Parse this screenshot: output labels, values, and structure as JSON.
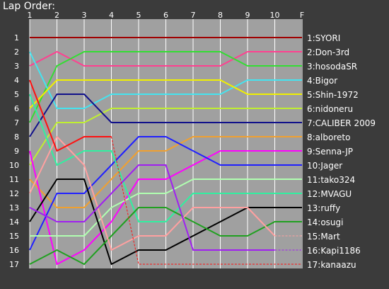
{
  "title": "Lap Order:",
  "chart_data": {
    "type": "line",
    "x_ticks": [
      "1",
      "2",
      "3",
      "4",
      "5",
      "6",
      "7",
      "8",
      "9",
      "10",
      "F"
    ],
    "y_ticks": [
      1,
      2,
      3,
      4,
      5,
      6,
      7,
      8,
      9,
      10,
      11,
      12,
      13,
      14,
      15,
      16,
      17
    ],
    "ylim": [
      1,
      17
    ],
    "legend_placement": "right",
    "series": [
      {
        "name": "1:SYORI",
        "color": "#a00000",
        "positions": [
          1,
          1,
          1,
          1,
          1,
          1,
          1,
          1,
          1,
          1,
          1
        ]
      },
      {
        "name": "2:Don-3rd",
        "color": "#ff4090",
        "positions": [
          3,
          2,
          3,
          3,
          3,
          3,
          3,
          3,
          2,
          2,
          2
        ]
      },
      {
        "name": "3:hosodaSR",
        "color": "#33dd33",
        "positions": [
          7,
          3,
          2,
          2,
          2,
          2,
          2,
          2,
          3,
          3,
          3
        ]
      },
      {
        "name": "4:Bigor",
        "color": "#44e4f0",
        "positions": [
          2,
          6,
          6,
          5,
          5,
          5,
          5,
          5,
          4,
          4,
          4
        ]
      },
      {
        "name": "5:Shin-1972",
        "color": "#f0f000",
        "positions": [
          6,
          4,
          4,
          4,
          4,
          4,
          4,
          4,
          5,
          5,
          5
        ]
      },
      {
        "name": "6:nidoneru",
        "color": "#c0f030",
        "positions": [
          10,
          7,
          7,
          6,
          6,
          6,
          6,
          6,
          6,
          6,
          6
        ]
      },
      {
        "name": "7:CALIBER 2009",
        "color": "#10108a",
        "positions": [
          8,
          5,
          5,
          7,
          7,
          7,
          7,
          7,
          7,
          7,
          7
        ]
      },
      {
        "name": "8:alboreto",
        "color": "#f0a030",
        "positions": [
          11,
          13,
          13,
          11,
          9,
          9,
          8,
          8,
          8,
          8,
          8
        ]
      },
      {
        "name": "9:Senna-JP",
        "color": "#ff00ff",
        "positions": [
          9,
          17,
          16,
          14,
          11,
          11,
          10,
          9,
          9,
          9,
          9
        ]
      },
      {
        "name": "10:Jager",
        "color": "#2020ff",
        "positions": [
          16,
          12,
          12,
          10,
          8,
          8,
          9,
          10,
          10,
          10,
          10
        ]
      },
      {
        "name": "11:tako324",
        "color": "#b0ffb0",
        "positions": [
          15,
          15,
          15,
          13,
          12,
          12,
          11,
          11,
          11,
          11,
          11
        ]
      },
      {
        "name": "12:MVAGU",
        "color": "#30f0a0",
        "positions": [
          5,
          10,
          9,
          9,
          14,
          14,
          12,
          12,
          12,
          12,
          12
        ]
      },
      {
        "name": "13:ruffy",
        "color": "#000000",
        "positions": [
          14,
          11,
          11,
          17,
          16,
          16,
          15,
          14,
          13,
          13,
          13
        ]
      },
      {
        "name": "14:osugi",
        "color": "#20a020",
        "positions": [
          17,
          16,
          17,
          15,
          13,
          13,
          14,
          15,
          15,
          14,
          14
        ]
      },
      {
        "name": "15:Mart",
        "color": "#ffa0a0",
        "positions": [
          12,
          8,
          10,
          16,
          15,
          15,
          13,
          13,
          13,
          15,
          15
        ],
        "retired_from": 9
      },
      {
        "name": "16:Kapi1186",
        "color": "#a020f0",
        "positions": [
          13,
          14,
          14,
          12,
          10,
          10,
          16,
          16,
          16,
          16,
          16
        ],
        "retired_from": 9
      },
      {
        "name": "17:kanaazu",
        "color": "#ff1010",
        "positions": [
          4,
          9,
          8,
          8,
          17,
          17,
          17,
          17,
          17,
          17,
          17
        ],
        "retired_from": 3
      }
    ]
  }
}
